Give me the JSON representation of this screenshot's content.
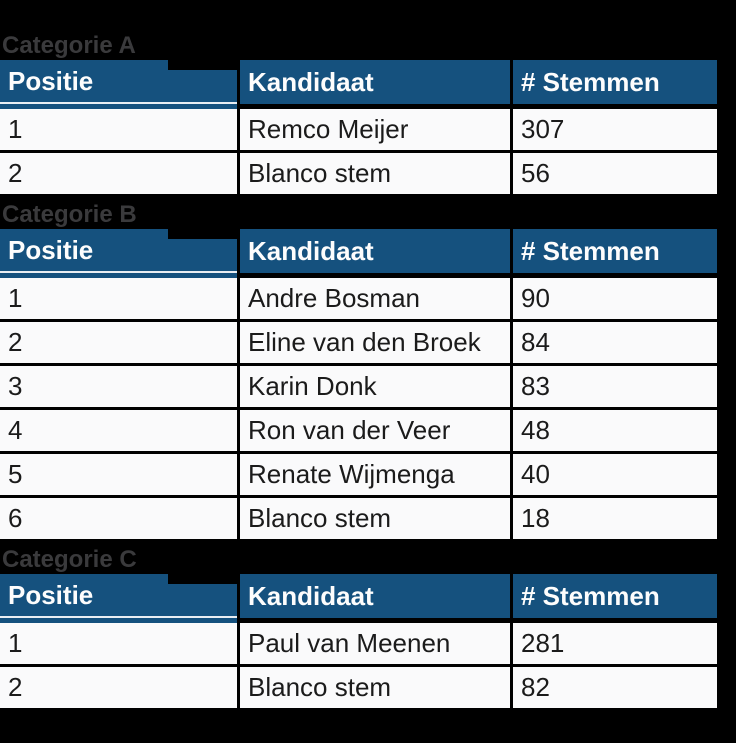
{
  "page": {
    "background": "#000000"
  },
  "colors": {
    "header_bg": "#15517E",
    "header_text": "#FDFDFD",
    "row_bg": "#FAFAFB",
    "row_text": "#1B1B1B",
    "label_text": "#3A3A3C",
    "grid": "#000000",
    "gap_line": "#E9EEF3"
  },
  "columns": [
    "Positie",
    "Kandidaat",
    "# Stemmen"
  ],
  "sections": [
    {
      "label": "Categorie A",
      "rows": [
        {
          "positie": "1",
          "kandidaat": "Remco Meijer",
          "stemmen": "307"
        },
        {
          "positie": "2",
          "kandidaat": "Blanco stem",
          "stemmen": "56"
        }
      ]
    },
    {
      "label": "Categorie B",
      "rows": [
        {
          "positie": "1",
          "kandidaat": "Andre Bosman",
          "stemmen": "90"
        },
        {
          "positie": "2",
          "kandidaat": "Eline van den Broek",
          "stemmen": "84"
        },
        {
          "positie": "3",
          "kandidaat": "Karin Donk",
          "stemmen": "83"
        },
        {
          "positie": "4",
          "kandidaat": "Ron van der Veer",
          "stemmen": "48"
        },
        {
          "positie": "5",
          "kandidaat": "Renate Wijmenga",
          "stemmen": "40"
        },
        {
          "positie": "6",
          "kandidaat": "Blanco stem",
          "stemmen": "18"
        }
      ]
    },
    {
      "label": "Categorie C",
      "rows": [
        {
          "positie": "1",
          "kandidaat": "Paul van Meenen",
          "stemmen": "281"
        },
        {
          "positie": "2",
          "kandidaat": "Blanco stem",
          "stemmen": "82"
        }
      ]
    }
  ]
}
